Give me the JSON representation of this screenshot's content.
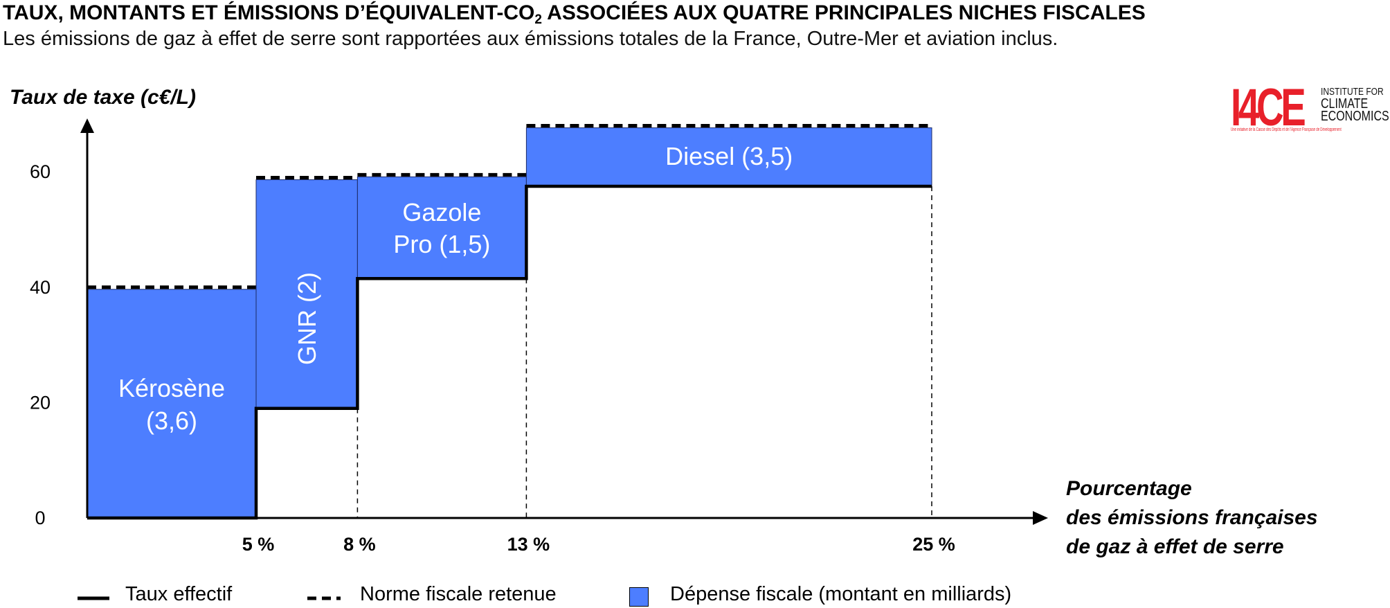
{
  "header": {
    "title_main": "TAUX, MONTANTS ET ÉMISSIONS D’ÉQUIVALENT-CO",
    "title_sub": "2",
    "title_rest": " ASSOCIÉES AUX QUATRE PRINCIPALES NICHES FISCALES",
    "subtitle": "Les émissions de gaz à effet de serre sont rapportées aux émissions totales de la France, Outre-Mer et aviation inclus."
  },
  "logo": {
    "mark": "I4CE",
    "line1": "INSTITUTE FOR",
    "line2": "CLIMATE",
    "line3": "ECONOMICS",
    "tagline": "Une initiative de la Caisse des Dépôts et de l’Agence Française de Développement",
    "color": "#e8202a"
  },
  "legend": {
    "effective": "Taux effectif",
    "norm": "Norme fiscale retenue",
    "expense": "Dépense fiscale (montant en milliards)"
  },
  "chart_data": {
    "type": "bar",
    "ylabel": "Taux de taxe (c€/L)",
    "xlabel_lines": [
      "Pourcentage",
      "des émissions françaises",
      "de gaz à effet de serre"
    ],
    "ylim": [
      0,
      70
    ],
    "yticks": [
      0,
      20,
      40,
      60
    ],
    "xlim": [
      0,
      30
    ],
    "xticks": [
      {
        "value": 5,
        "label": "5 %"
      },
      {
        "value": 8,
        "label": "8 %"
      },
      {
        "value": 13,
        "label": "13 %"
      },
      {
        "value": 25,
        "label": "25 %"
      }
    ],
    "bar_color": "#4d7eff",
    "series": [
      {
        "name": "Kérosène",
        "amount": "(3,6)",
        "x_start": 0,
        "x_end": 5,
        "effective_rate": 0,
        "norm_rate": 40
      },
      {
        "name": "GNR",
        "amount": "(2)",
        "x_start": 5,
        "x_end": 8,
        "effective_rate": 19,
        "norm_rate": 59
      },
      {
        "name": "Gazole Pro",
        "amount": "(1,5)",
        "x_start": 8,
        "x_end": 13,
        "effective_rate": 41.5,
        "norm_rate": 59.5
      },
      {
        "name": "Diesel",
        "amount": "(3,5)",
        "x_start": 13,
        "x_end": 25,
        "effective_rate": 57.5,
        "norm_rate": 68
      }
    ],
    "bar_labels": [
      "Kérosène",
      "(3,6)",
      "GNR (2)",
      "Gazole",
      "Pro (1,5)",
      "Diesel (3,5)"
    ],
    "grid": false,
    "legend_position": "bottom"
  }
}
